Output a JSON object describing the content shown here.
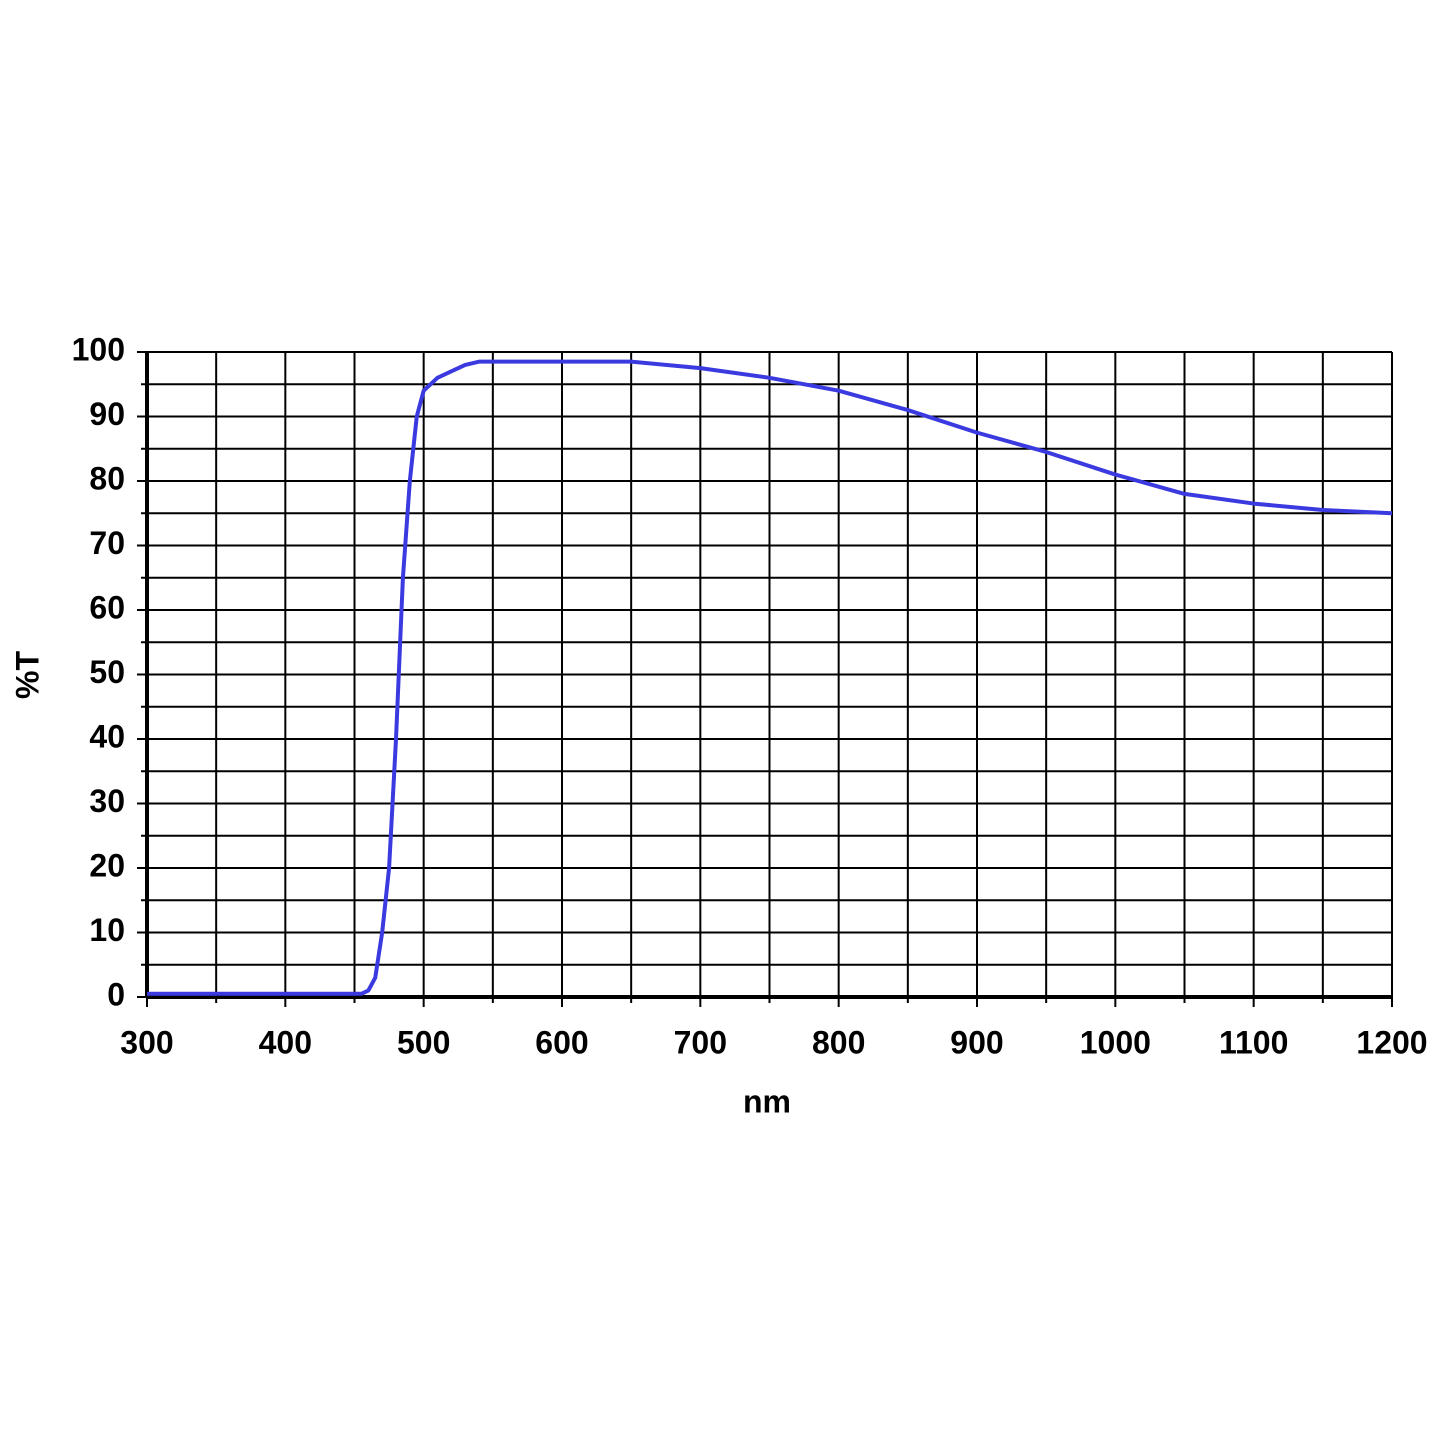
{
  "chart_data": {
    "type": "line",
    "x_label": "nm",
    "y_label": "%T",
    "x": [
      300,
      350,
      400,
      450,
      455,
      460,
      465,
      470,
      475,
      480,
      485,
      490,
      495,
      500,
      510,
      520,
      530,
      540,
      550,
      600,
      650,
      700,
      750,
      800,
      850,
      900,
      950,
      1000,
      1050,
      1100,
      1150,
      1200
    ],
    "series": [
      {
        "name": "%T",
        "color": "#3a3ae0",
        "values": [
          0.5,
          0.5,
          0.5,
          0.5,
          0.5,
          1,
          3,
          10,
          20,
          40,
          65,
          80,
          90,
          94,
          96,
          97,
          98,
          98.5,
          98.5,
          98.5,
          98.5,
          97.5,
          96,
          94,
          91,
          87.5,
          84.5,
          81,
          78,
          76.5,
          75.5,
          75
        ]
      }
    ],
    "xlim": [
      300,
      1200
    ],
    "xticks": [
      300,
      400,
      500,
      600,
      700,
      800,
      900,
      1000,
      1100,
      1200
    ],
    "xticks_minor": [
      350,
      450,
      550,
      650,
      750,
      850,
      950,
      1050,
      1150
    ],
    "ylim": [
      0,
      100
    ],
    "yticks": [
      0,
      10,
      20,
      30,
      40,
      50,
      60,
      70,
      80,
      90,
      100
    ],
    "yticks_minor": [
      5,
      15,
      25,
      35,
      45,
      55,
      65,
      75,
      85,
      95
    ],
    "grid": true
  }
}
